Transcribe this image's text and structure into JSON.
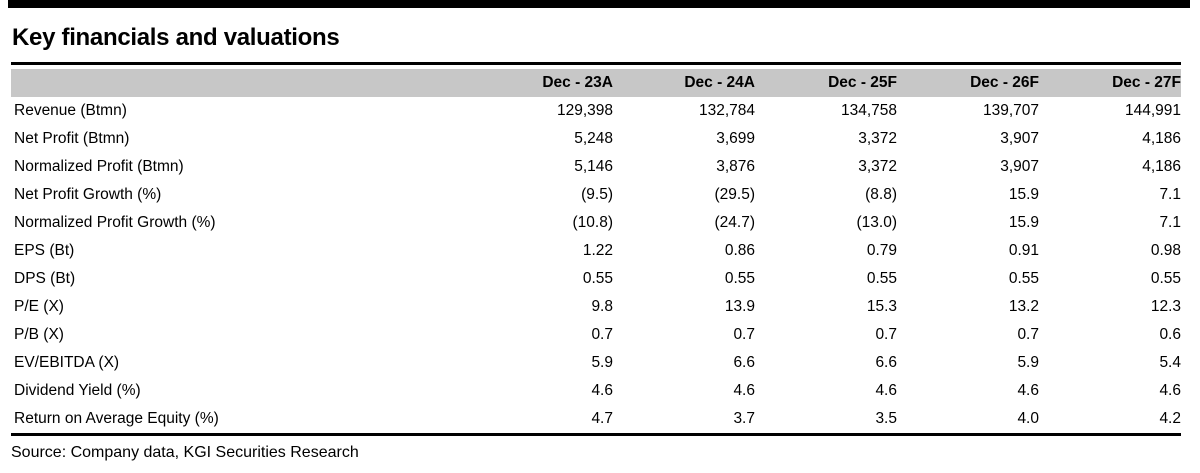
{
  "document": {
    "title": "Key financials and valuations",
    "source": "Source: Company data, KGI Securities Research"
  },
  "colors": {
    "header_bg": "#c7c7c7",
    "rule": "#000000",
    "text": "#000000"
  },
  "table": {
    "columns": [
      "Dec - 23A",
      "Dec - 24A",
      "Dec - 25F",
      "Dec - 26F",
      "Dec - 27F"
    ],
    "rows": [
      {
        "label": "Revenue (Btmn)",
        "values": [
          "129,398",
          "132,784",
          "134,758",
          "139,707",
          "144,991"
        ]
      },
      {
        "label": "Net Profit (Btmn)",
        "values": [
          "5,248",
          "3,699",
          "3,372",
          "3,907",
          "4,186"
        ]
      },
      {
        "label": "Normalized Profit (Btmn)",
        "values": [
          "5,146",
          "3,876",
          "3,372",
          "3,907",
          "4,186"
        ]
      },
      {
        "label": "Net Profit Growth (%)",
        "values": [
          "(9.5)",
          "(29.5)",
          "(8.8)",
          "15.9",
          "7.1"
        ]
      },
      {
        "label": "Normalized Profit Growth (%)",
        "values": [
          "(10.8)",
          "(24.7)",
          "(13.0)",
          "15.9",
          "7.1"
        ]
      },
      {
        "label": "EPS (Bt)",
        "values": [
          "1.22",
          "0.86",
          "0.79",
          "0.91",
          "0.98"
        ]
      },
      {
        "label": "DPS (Bt)",
        "values": [
          "0.55",
          "0.55",
          "0.55",
          "0.55",
          "0.55"
        ]
      },
      {
        "label": "P/E (X)",
        "values": [
          "9.8",
          "13.9",
          "15.3",
          "13.2",
          "12.3"
        ]
      },
      {
        "label": "P/B (X)",
        "values": [
          "0.7",
          "0.7",
          "0.7",
          "0.7",
          "0.6"
        ]
      },
      {
        "label": "EV/EBITDA (X)",
        "values": [
          "5.9",
          "6.6",
          "6.6",
          "5.9",
          "5.4"
        ]
      },
      {
        "label": "Dividend Yield (%)",
        "values": [
          "4.6",
          "4.6",
          "4.6",
          "4.6",
          "4.6"
        ]
      },
      {
        "label": "Return on Average Equity (%)",
        "values": [
          "4.7",
          "3.7",
          "3.5",
          "4.0",
          "4.2"
        ]
      }
    ]
  }
}
